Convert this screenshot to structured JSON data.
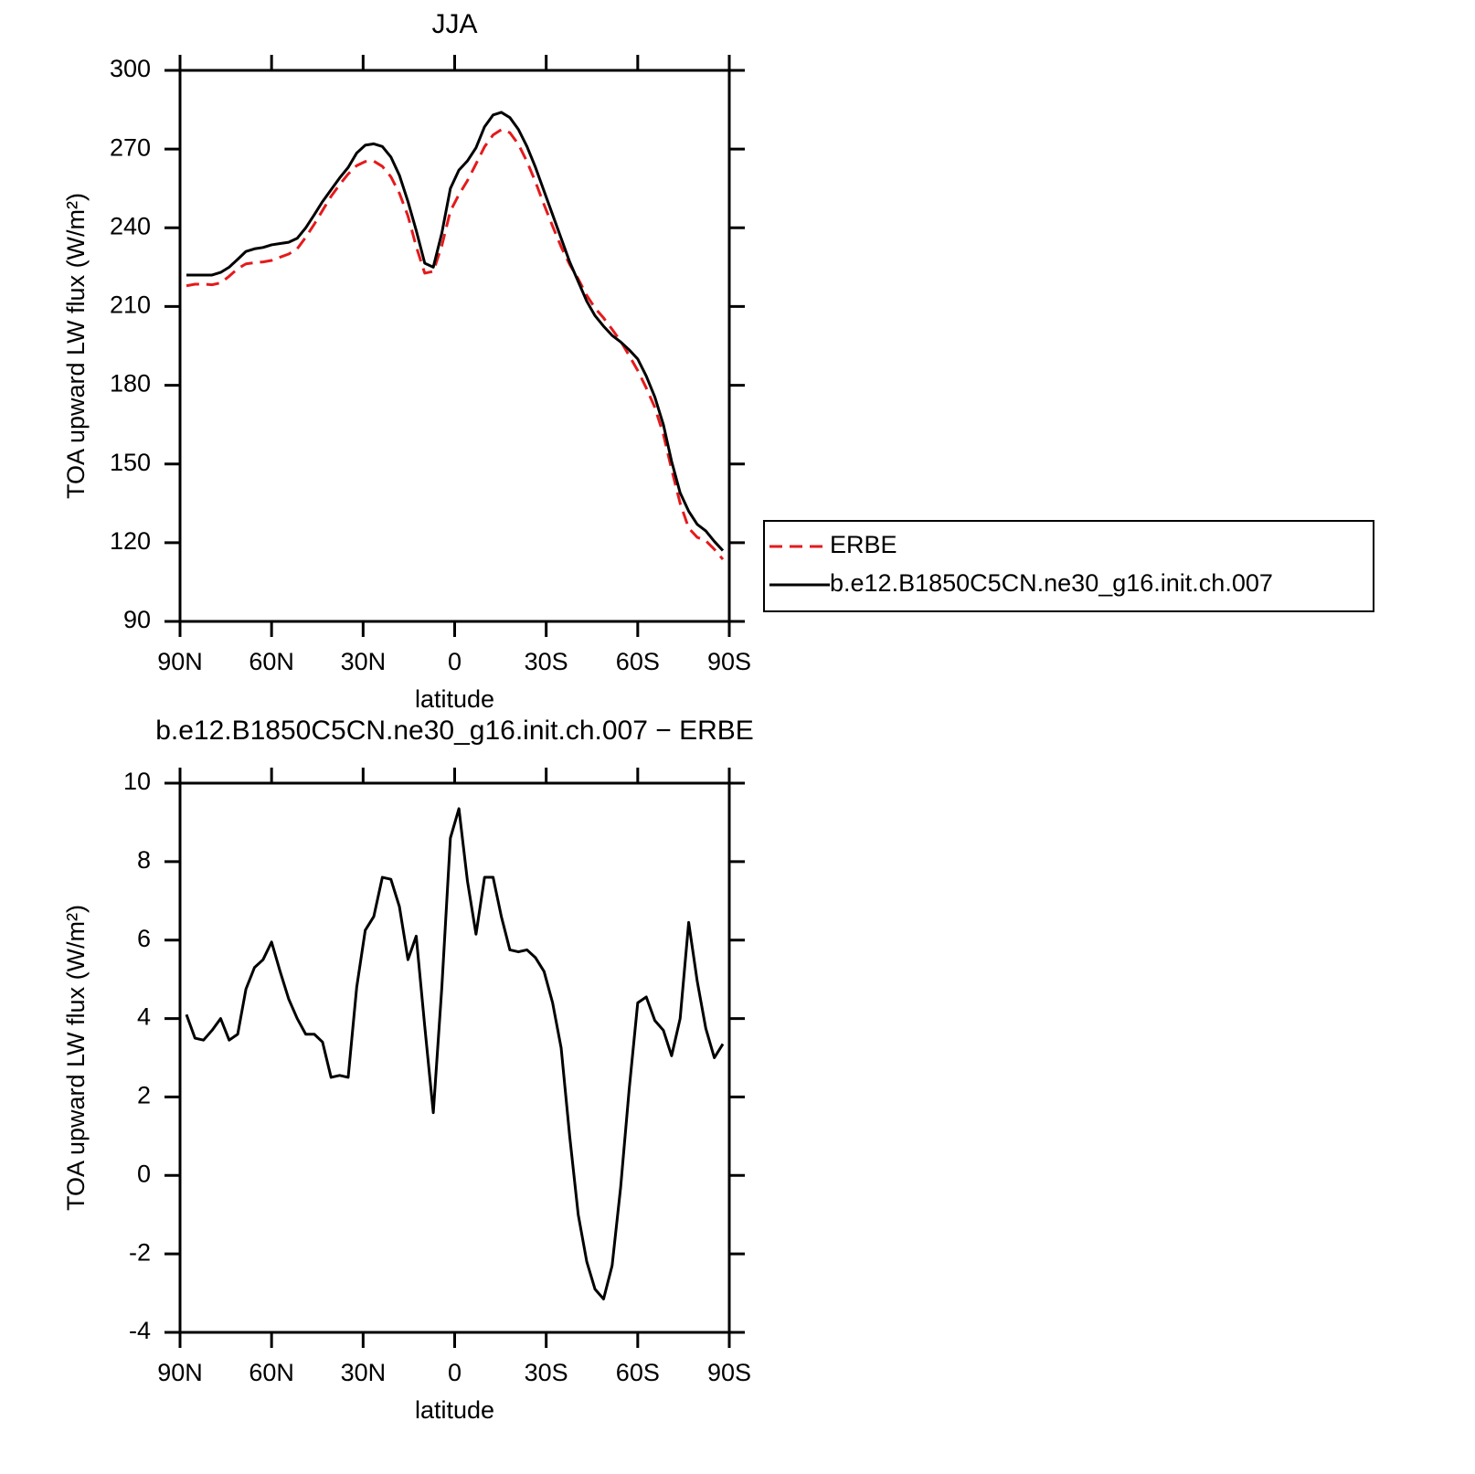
{
  "chart_data": [
    {
      "type": "line",
      "title": "JJA",
      "x_label": "latitude",
      "y_label": "TOA upward LW flux (W/m²)",
      "x": [
        87.9,
        85.1,
        82.3,
        79.5,
        76.7,
        73.9,
        71.1,
        68.4,
        65.6,
        62.8,
        60.0,
        57.2,
        54.4,
        51.6,
        48.8,
        46.0,
        43.3,
        40.5,
        37.7,
        34.9,
        32.1,
        29.3,
        26.5,
        23.7,
        20.9,
        18.1,
        15.3,
        12.6,
        9.8,
        7.0,
        4.2,
        1.4,
        -1.4,
        -4.2,
        -7.0,
        -9.8,
        -12.6,
        -15.3,
        -18.1,
        -20.9,
        -23.7,
        -26.5,
        -29.3,
        -32.1,
        -34.9,
        -37.7,
        -40.5,
        -43.3,
        -46.0,
        -48.8,
        -51.6,
        -54.4,
        -57.2,
        -60.0,
        -62.8,
        -65.6,
        -68.4,
        -71.1,
        -73.9,
        -76.7,
        -79.5,
        -82.3,
        -85.1,
        -87.9
      ],
      "xlim": [
        90,
        -90
      ],
      "xticks": [
        {
          "value": 90,
          "label": "90N"
        },
        {
          "value": 60,
          "label": "60N"
        },
        {
          "value": 30,
          "label": "30N"
        },
        0,
        {
          "value": -30,
          "label": "30S"
        },
        {
          "value": -60,
          "label": "60S"
        },
        {
          "value": -90,
          "label": "90S"
        }
      ],
      "ylim": [
        90,
        300
      ],
      "yticks": [
        90,
        120,
        150,
        180,
        210,
        240,
        270,
        300
      ],
      "legend": "right",
      "series": [
        {
          "name": "ERBE",
          "color": "#e41a1c",
          "dash": true,
          "values": [
            217.9,
            218.5,
            218.55,
            218.3,
            219.0,
            221.55,
            224.4,
            226.25,
            226.7,
            227.0,
            227.55,
            228.8,
            230.0,
            232.0,
            236.4,
            241.4,
            246.6,
            252.0,
            256.45,
            260.5,
            263.7,
            265.25,
            265.4,
            263.4,
            259.45,
            253.15,
            244.5,
            232.9,
            222.7,
            223.4,
            233.2,
            246.4,
            252.65,
            258.0,
            264.35,
            270.9,
            275.4,
            277.4,
            276.25,
            271.8,
            265.25,
            257.45,
            248.8,
            240.6,
            232.75,
            226.0,
            220.5,
            214.2,
            209.4,
            205.65,
            201.3,
            196.8,
            191.3,
            185.6,
            178.95,
            171.55,
            161.3,
            147.95,
            135.0,
            125.55,
            122.05,
            120.75,
            117.5,
            113.65
          ]
        },
        {
          "name": "b.e12.B1850C5CN.ne30_g16.init.ch.007",
          "color": "#000000",
          "dash": false,
          "values": [
            222,
            222,
            222,
            222,
            223,
            225,
            228,
            231,
            232,
            232.5,
            233.5,
            234,
            234.5,
            236,
            240,
            245,
            250,
            254.5,
            259,
            263,
            268.5,
            271.5,
            272,
            271,
            267,
            260,
            250,
            239,
            226.5,
            225,
            238,
            255,
            262,
            265.5,
            270.5,
            278.5,
            283,
            284,
            282,
            277.5,
            271,
            263,
            254,
            245,
            236,
            227,
            219.5,
            212,
            206.5,
            202.5,
            199,
            196.5,
            193.5,
            190,
            183.5,
            175.5,
            165,
            151,
            139,
            132,
            127,
            124.5,
            120.5,
            117
          ]
        }
      ]
    },
    {
      "type": "line",
      "title": "b.e12.B1850C5CN.ne30_g16.init.ch.007 − ERBE",
      "x_label": "latitude",
      "y_label": "TOA upward LW flux (W/m²)",
      "x": [
        87.9,
        85.1,
        82.3,
        79.5,
        76.7,
        73.9,
        71.1,
        68.4,
        65.6,
        62.8,
        60.0,
        57.2,
        54.4,
        51.6,
        48.8,
        46.0,
        43.3,
        40.5,
        37.7,
        34.9,
        32.1,
        29.3,
        26.5,
        23.7,
        20.9,
        18.1,
        15.3,
        12.6,
        9.8,
        7.0,
        4.2,
        1.4,
        -1.4,
        -4.2,
        -7.0,
        -9.8,
        -12.6,
        -15.3,
        -18.1,
        -20.9,
        -23.7,
        -26.5,
        -29.3,
        -32.1,
        -34.9,
        -37.7,
        -40.5,
        -43.3,
        -46.0,
        -48.8,
        -51.6,
        -54.4,
        -57.2,
        -60.0,
        -62.8,
        -65.6,
        -68.4,
        -71.1,
        -73.9,
        -76.7,
        -79.5,
        -82.3,
        -85.1,
        -87.9
      ],
      "xlim": [
        90,
        -90
      ],
      "xticks": [
        {
          "value": 90,
          "label": "90N"
        },
        {
          "value": 60,
          "label": "60N"
        },
        {
          "value": 30,
          "label": "30N"
        },
        0,
        {
          "value": -30,
          "label": "30S"
        },
        {
          "value": -60,
          "label": "60S"
        },
        {
          "value": -90,
          "label": "90S"
        }
      ],
      "ylim": [
        -4,
        10
      ],
      "yticks": [
        -4,
        -2,
        0,
        2,
        4,
        6,
        8,
        10
      ],
      "series": [
        {
          "color": "#000000",
          "dash": false,
          "values": [
            4.1,
            3.5,
            3.45,
            3.7,
            4.0,
            3.45,
            3.6,
            4.75,
            5.3,
            5.5,
            5.95,
            5.2,
            4.5,
            4.0,
            3.6,
            3.6,
            3.4,
            2.5,
            2.55,
            2.5,
            4.8,
            6.25,
            6.6,
            7.6,
            7.55,
            6.85,
            5.5,
            6.1,
            3.8,
            1.6,
            4.8,
            8.6,
            9.35,
            7.5,
            6.15,
            7.6,
            7.6,
            6.6,
            5.75,
            5.7,
            5.75,
            5.55,
            5.2,
            4.4,
            3.25,
            1.0,
            -1.0,
            -2.2,
            -2.9,
            -3.15,
            -2.3,
            -0.3,
            2.2,
            4.4,
            4.55,
            3.95,
            3.7,
            3.05,
            4.0,
            6.45,
            4.95,
            3.75,
            3.0,
            3.35
          ]
        }
      ]
    }
  ]
}
